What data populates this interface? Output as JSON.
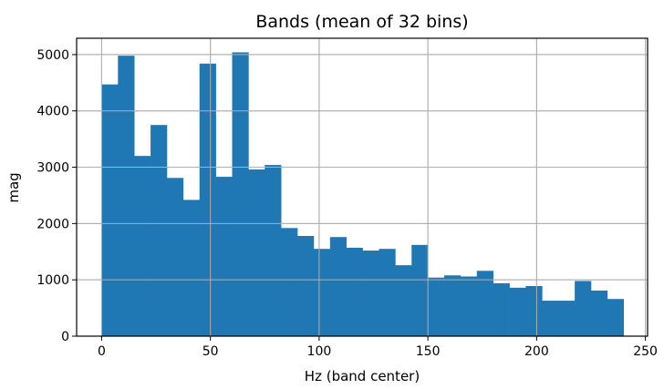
{
  "chart_data": {
    "type": "bar",
    "title": "Bands (mean of 32 bins)",
    "xlabel": "Hz (band center)",
    "ylabel": "mag",
    "xlim": [
      -11.5,
      251
    ],
    "ylim": [
      0,
      5290
    ],
    "grid": true,
    "bin_width": 7.5,
    "x_ticks": [
      0,
      50,
      100,
      150,
      200,
      250
    ],
    "y_ticks": [
      0,
      1000,
      2000,
      3000,
      4000,
      5000
    ],
    "color": "#1f77b4",
    "x": [
      3.75,
      11.25,
      18.75,
      26.25,
      33.75,
      41.25,
      48.75,
      56.25,
      63.75,
      71.25,
      78.75,
      86.25,
      93.75,
      101.25,
      108.75,
      116.25,
      123.75,
      131.25,
      138.75,
      146.25,
      153.75,
      161.25,
      168.75,
      176.25,
      183.75,
      191.25,
      198.75,
      206.25,
      213.75,
      221.25,
      228.75,
      236.25
    ],
    "values": [
      4470,
      4980,
      3200,
      3750,
      2810,
      2420,
      4840,
      2830,
      5040,
      2960,
      3040,
      1920,
      1780,
      1550,
      1760,
      1570,
      1520,
      1550,
      1260,
      1620,
      1040,
      1080,
      1060,
      1160,
      940,
      860,
      890,
      630,
      630,
      980,
      810,
      660
    ]
  }
}
